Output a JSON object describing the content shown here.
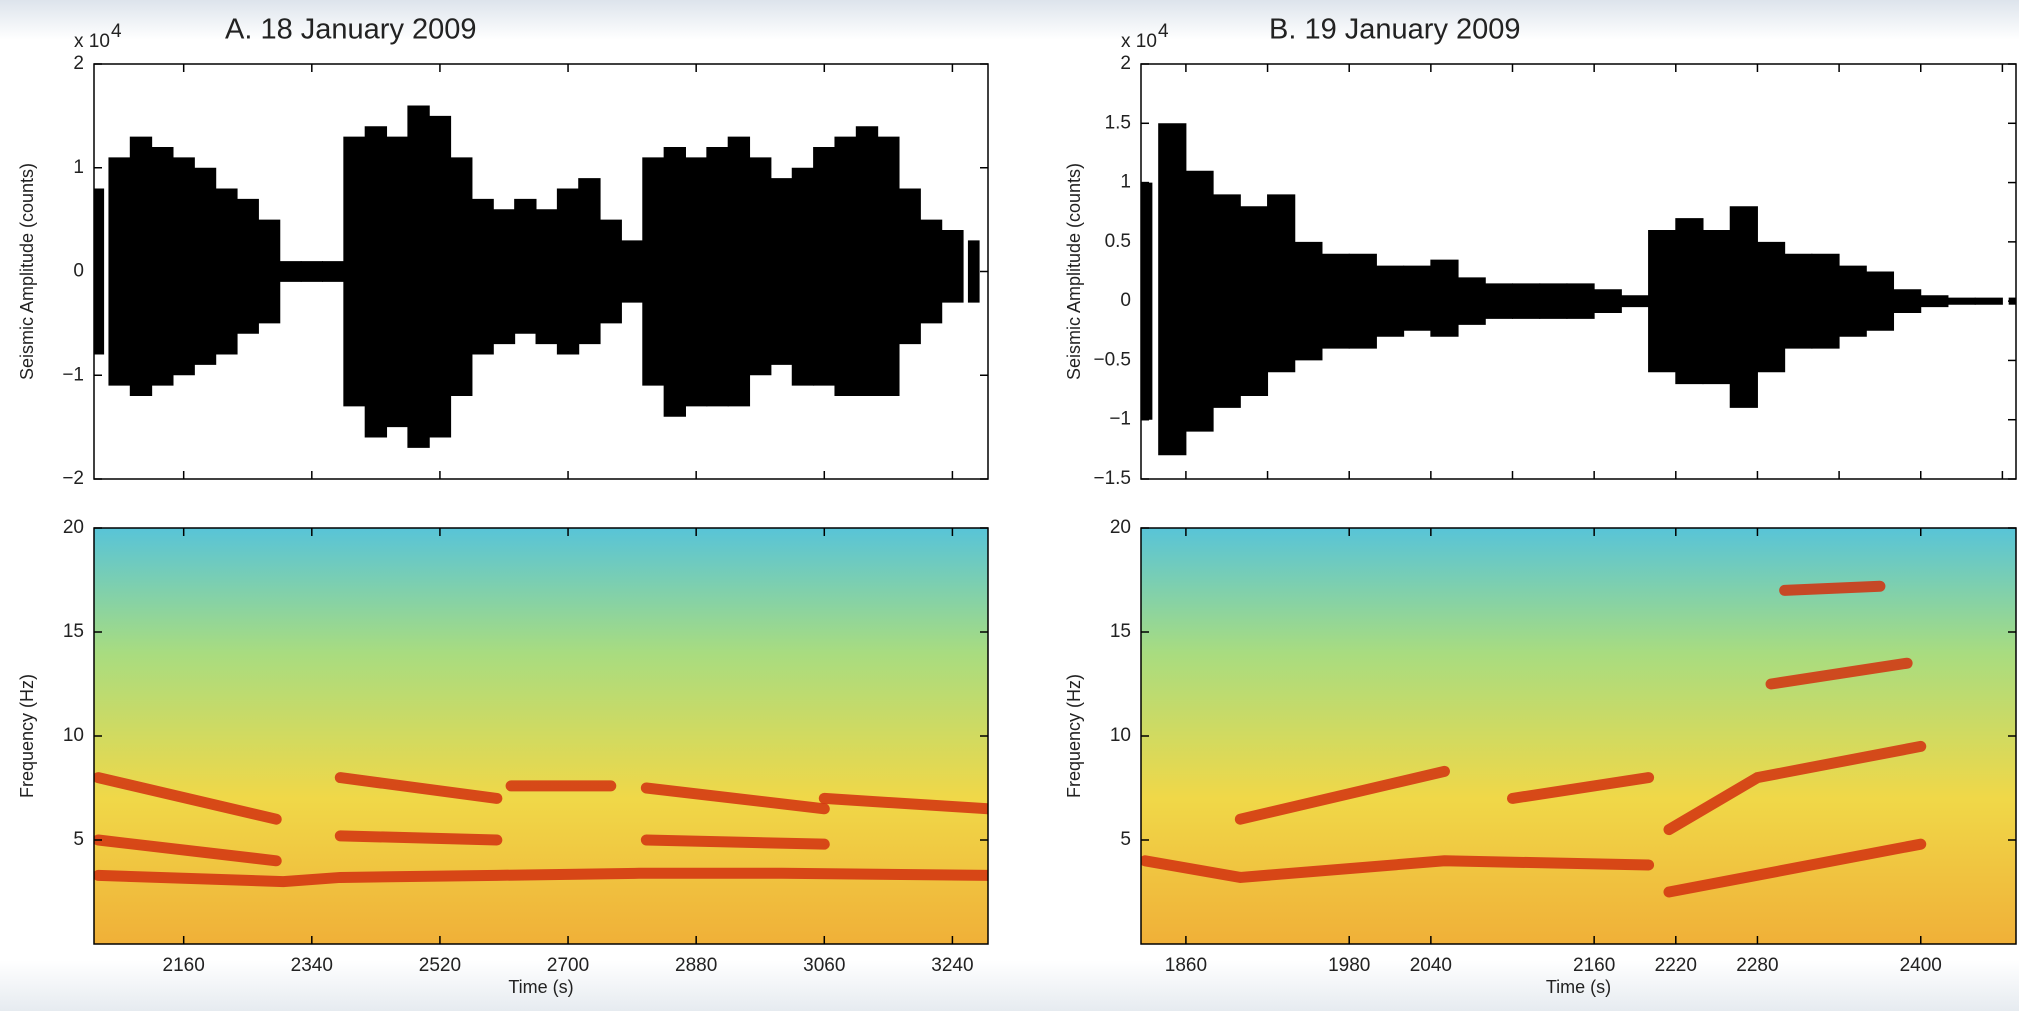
{
  "chart_data": [
    {
      "type": "waveform",
      "title": "A. 18 January 2009",
      "y_label": "Seismic Amplitude (counts)",
      "multiplier": "x 10",
      "multiplier_exponent": "4",
      "color": "#000000",
      "xlim": [
        2034,
        3290
      ],
      "xticks": [
        2160,
        2340,
        2520,
        2700,
        2880,
        3060,
        3240
      ],
      "ylim": [
        -2,
        2
      ],
      "yticks": [
        {
          "value": -2,
          "label": "−2"
        },
        {
          "value": -1,
          "label": "−1"
        },
        0,
        1,
        2
      ],
      "x": [
        2040,
        2070,
        2100,
        2130,
        2160,
        2190,
        2220,
        2250,
        2280,
        2310,
        2340,
        2370,
        2400,
        2430,
        2460,
        2490,
        2520,
        2550,
        2580,
        2610,
        2640,
        2670,
        2700,
        2730,
        2760,
        2790,
        2820,
        2850,
        2880,
        2910,
        2940,
        2970,
        3000,
        3030,
        3060,
        3090,
        3120,
        3150,
        3180,
        3210,
        3240,
        3270
      ],
      "upper": [
        0.8,
        1.1,
        1.3,
        1.2,
        1.1,
        1.0,
        0.8,
        0.7,
        0.5,
        0.1,
        0.1,
        0.1,
        1.3,
        1.4,
        1.3,
        1.6,
        1.5,
        1.1,
        0.7,
        0.6,
        0.7,
        0.6,
        0.8,
        0.9,
        0.5,
        0.3,
        1.1,
        1.2,
        1.1,
        1.2,
        1.3,
        1.1,
        0.9,
        1.0,
        1.2,
        1.3,
        1.4,
        1.3,
        0.8,
        0.5,
        0.4,
        0.3
      ],
      "lower": [
        -0.8,
        -1.1,
        -1.2,
        -1.1,
        -1.0,
        -0.9,
        -0.8,
        -0.6,
        -0.5,
        -0.1,
        -0.1,
        -0.1,
        -1.3,
        -1.6,
        -1.5,
        -1.7,
        -1.6,
        -1.2,
        -0.8,
        -0.7,
        -0.6,
        -0.7,
        -0.8,
        -0.7,
        -0.5,
        -0.3,
        -1.1,
        -1.4,
        -1.3,
        -1.3,
        -1.3,
        -1.0,
        -0.9,
        -1.1,
        -1.1,
        -1.2,
        -1.2,
        -1.2,
        -0.7,
        -0.5,
        -0.3,
        -0.3
      ]
    },
    {
      "type": "spectrogram",
      "y_label": "Frequency (Hz)",
      "x_label": "Time (s)",
      "color": "#d2300f",
      "xlim": [
        2034,
        3290
      ],
      "xticks": [
        2160,
        2340,
        2520,
        2700,
        2880,
        3060,
        3240
      ],
      "ylim": [
        0,
        20
      ],
      "yticks": [
        5,
        10,
        15,
        20
      ],
      "lines": [
        {
          "x": [
            2040,
            2300,
            2380,
            2600,
            2800,
            3000,
            3290
          ],
          "values": [
            3.3,
            3.0,
            3.2,
            3.3,
            3.4,
            3.4,
            3.3
          ]
        },
        {
          "x": [
            2040,
            2290
          ],
          "values": [
            8.0,
            6.0
          ]
        },
        {
          "x": [
            2040,
            2290
          ],
          "values": [
            5.0,
            4.0
          ]
        },
        {
          "x": [
            2380,
            2600
          ],
          "values": [
            8.0,
            7.0
          ]
        },
        {
          "x": [
            2380,
            2600
          ],
          "values": [
            5.2,
            5.0
          ]
        },
        {
          "x": [
            2620,
            2760
          ],
          "values": [
            7.6,
            7.6
          ]
        },
        {
          "x": [
            2810,
            3060
          ],
          "values": [
            7.5,
            6.5
          ]
        },
        {
          "x": [
            2810,
            3060
          ],
          "values": [
            5.0,
            4.8
          ]
        },
        {
          "x": [
            3060,
            3290
          ],
          "values": [
            7.0,
            6.5
          ]
        }
      ]
    },
    {
      "type": "waveform",
      "title": "B. 19 January 2009",
      "y_label": "Seismic Amplitude (counts)",
      "multiplier": "x 10",
      "multiplier_exponent": "4",
      "color": "#000000",
      "xlim": [
        1827,
        2470
      ],
      "xticks": [
        1860,
        1920,
        1980,
        2040,
        2100,
        2160,
        2220,
        2280,
        2340,
        2400,
        2460
      ],
      "ylim": [
        -1.5,
        2
      ],
      "yticks": [
        {
          "value": -1.5,
          "label": "−1.5"
        },
        {
          "value": -1,
          "label": "−1"
        },
        {
          "value": -0.5,
          "label": "−0.5"
        },
        0,
        0.5,
        1,
        1.5,
        2
      ],
      "x": [
        1830,
        1850,
        1870,
        1890,
        1910,
        1930,
        1950,
        1970,
        1990,
        2010,
        2030,
        2050,
        2070,
        2090,
        2110,
        2130,
        2150,
        2170,
        2190,
        2210,
        2230,
        2250,
        2270,
        2290,
        2310,
        2330,
        2350,
        2370,
        2390,
        2410,
        2430,
        2450,
        2470
      ],
      "upper": [
        1.0,
        1.5,
        1.1,
        0.9,
        0.8,
        0.9,
        0.5,
        0.4,
        0.4,
        0.3,
        0.3,
        0.35,
        0.2,
        0.15,
        0.15,
        0.15,
        0.15,
        0.1,
        0.05,
        0.6,
        0.7,
        0.6,
        0.8,
        0.5,
        0.4,
        0.4,
        0.3,
        0.25,
        0.1,
        0.05,
        0.03,
        0.03,
        0.03
      ],
      "lower": [
        -1.0,
        -1.3,
        -1.1,
        -0.9,
        -0.8,
        -0.6,
        -0.5,
        -0.4,
        -0.4,
        -0.3,
        -0.25,
        -0.3,
        -0.2,
        -0.15,
        -0.15,
        -0.15,
        -0.15,
        -0.1,
        -0.05,
        -0.6,
        -0.7,
        -0.7,
        -0.9,
        -0.6,
        -0.4,
        -0.4,
        -0.3,
        -0.25,
        -0.1,
        -0.05,
        -0.03,
        -0.03,
        -0.03
      ]
    },
    {
      "type": "spectrogram",
      "y_label": "Frequency (Hz)",
      "x_label": "Time (s)",
      "color": "#d2300f",
      "xlim": [
        1827,
        2470
      ],
      "xticks": [
        1860,
        1980,
        2040,
        2160,
        2220,
        2280,
        2400
      ],
      "ylim": [
        0,
        20
      ],
      "yticks": [
        5,
        10,
        15,
        20
      ],
      "lines": [
        {
          "x": [
            1830,
            1900,
            2050,
            2200
          ],
          "values": [
            4.0,
            3.2,
            4.0,
            3.8
          ]
        },
        {
          "x": [
            1900,
            2050
          ],
          "values": [
            6.0,
            8.3
          ]
        },
        {
          "x": [
            2100,
            2200
          ],
          "values": [
            7.0,
            8.0
          ]
        },
        {
          "x": [
            2215,
            2400
          ],
          "values": [
            2.5,
            4.8
          ]
        },
        {
          "x": [
            2215,
            2280,
            2400
          ],
          "values": [
            5.5,
            8.0,
            9.5
          ]
        },
        {
          "x": [
            2290,
            2390
          ],
          "values": [
            12.5,
            13.5
          ]
        },
        {
          "x": [
            2300,
            2370
          ],
          "values": [
            17.0,
            17.2
          ]
        }
      ]
    }
  ]
}
